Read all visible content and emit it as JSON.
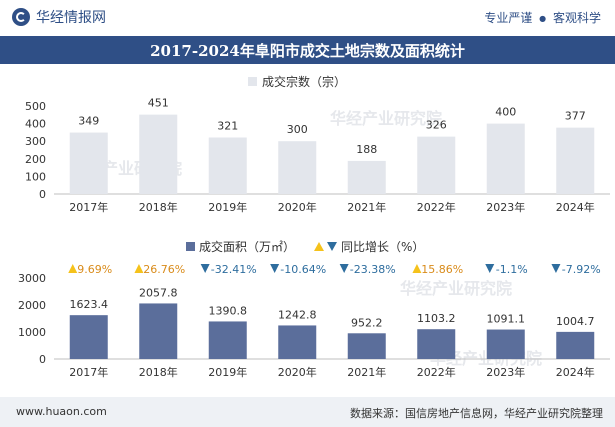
{
  "header": {
    "brand": "华经情报网",
    "slogan_left": "专业严谨",
    "slogan_sep": "●",
    "slogan_right": "客观科学"
  },
  "title": "2017-2024年阜阳市成交土地宗数及面积统计",
  "footer": {
    "website": "www.huaon.com",
    "source": "数据来源：国信房地产信息网，华经产业研究院整理"
  },
  "watermark": "华经产业研究院",
  "chart_data": [
    {
      "type": "bar",
      "legend": "成交宗数（宗）",
      "categories": [
        "2017年",
        "2018年",
        "2019年",
        "2020年",
        "2021年",
        "2022年",
        "2023年",
        "2024年"
      ],
      "values": [
        349,
        451,
        321,
        300,
        188,
        326,
        400,
        377
      ],
      "ylim": [
        0,
        500
      ],
      "yticks": [
        0,
        100,
        200,
        300,
        400,
        500
      ],
      "color": "#e3e6ec",
      "legend_position": "top-center"
    },
    {
      "type": "bar",
      "legend": "成交面积（万㎡）",
      "growth_legend": "同比增长（%）",
      "categories": [
        "2017年",
        "2018年",
        "2019年",
        "2020年",
        "2021年",
        "2022年",
        "2023年",
        "2024年"
      ],
      "values": [
        1623.4,
        2057.8,
        1390.8,
        1242.8,
        952.2,
        1103.2,
        1091.1,
        1004.7
      ],
      "growth": [
        "9.69%",
        "26.76%",
        "-32.41%",
        "-10.64%",
        "-23.38%",
        "15.86%",
        "-1.1%",
        "-7.92%"
      ],
      "growth_direction": [
        "up",
        "up",
        "down",
        "down",
        "down",
        "up",
        "down",
        "down"
      ],
      "ylim": [
        0,
        3000
      ],
      "yticks": [
        0,
        1000,
        2000,
        3000
      ],
      "color": "#5b6e9b",
      "up_color": "#f5c21b",
      "down_color": "#2e6d9e",
      "legend_position": "top-center"
    }
  ]
}
